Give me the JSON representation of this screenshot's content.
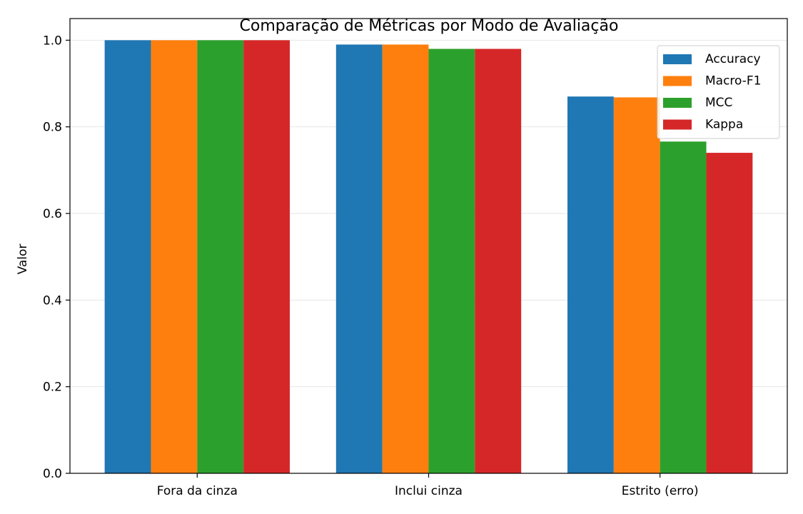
{
  "chart_data": {
    "type": "bar",
    "title": "Comparação de Métricas por Modo de Avaliação",
    "xlabel": "",
    "ylabel": "Valor",
    "categories": [
      "Fora da cinza",
      "Inclui cinza",
      "Estrito (erro)"
    ],
    "series": [
      {
        "name": "Accuracy",
        "color": "#1f77b4",
        "values": [
          1.0,
          0.99,
          0.87
        ]
      },
      {
        "name": "Macro-F1",
        "color": "#ff7f0e",
        "values": [
          1.0,
          0.99,
          0.868
        ]
      },
      {
        "name": "MCC",
        "color": "#2ca02c",
        "values": [
          1.0,
          0.98,
          0.766
        ]
      },
      {
        "name": "Kappa",
        "color": "#d62728",
        "values": [
          1.0,
          0.98,
          0.74
        ]
      }
    ],
    "ylim": [
      0,
      1.05
    ],
    "yticks": [
      "0.0",
      "0.2",
      "0.4",
      "0.6",
      "0.8",
      "1.0"
    ],
    "grid": "y",
    "legend_position": "top-right"
  }
}
